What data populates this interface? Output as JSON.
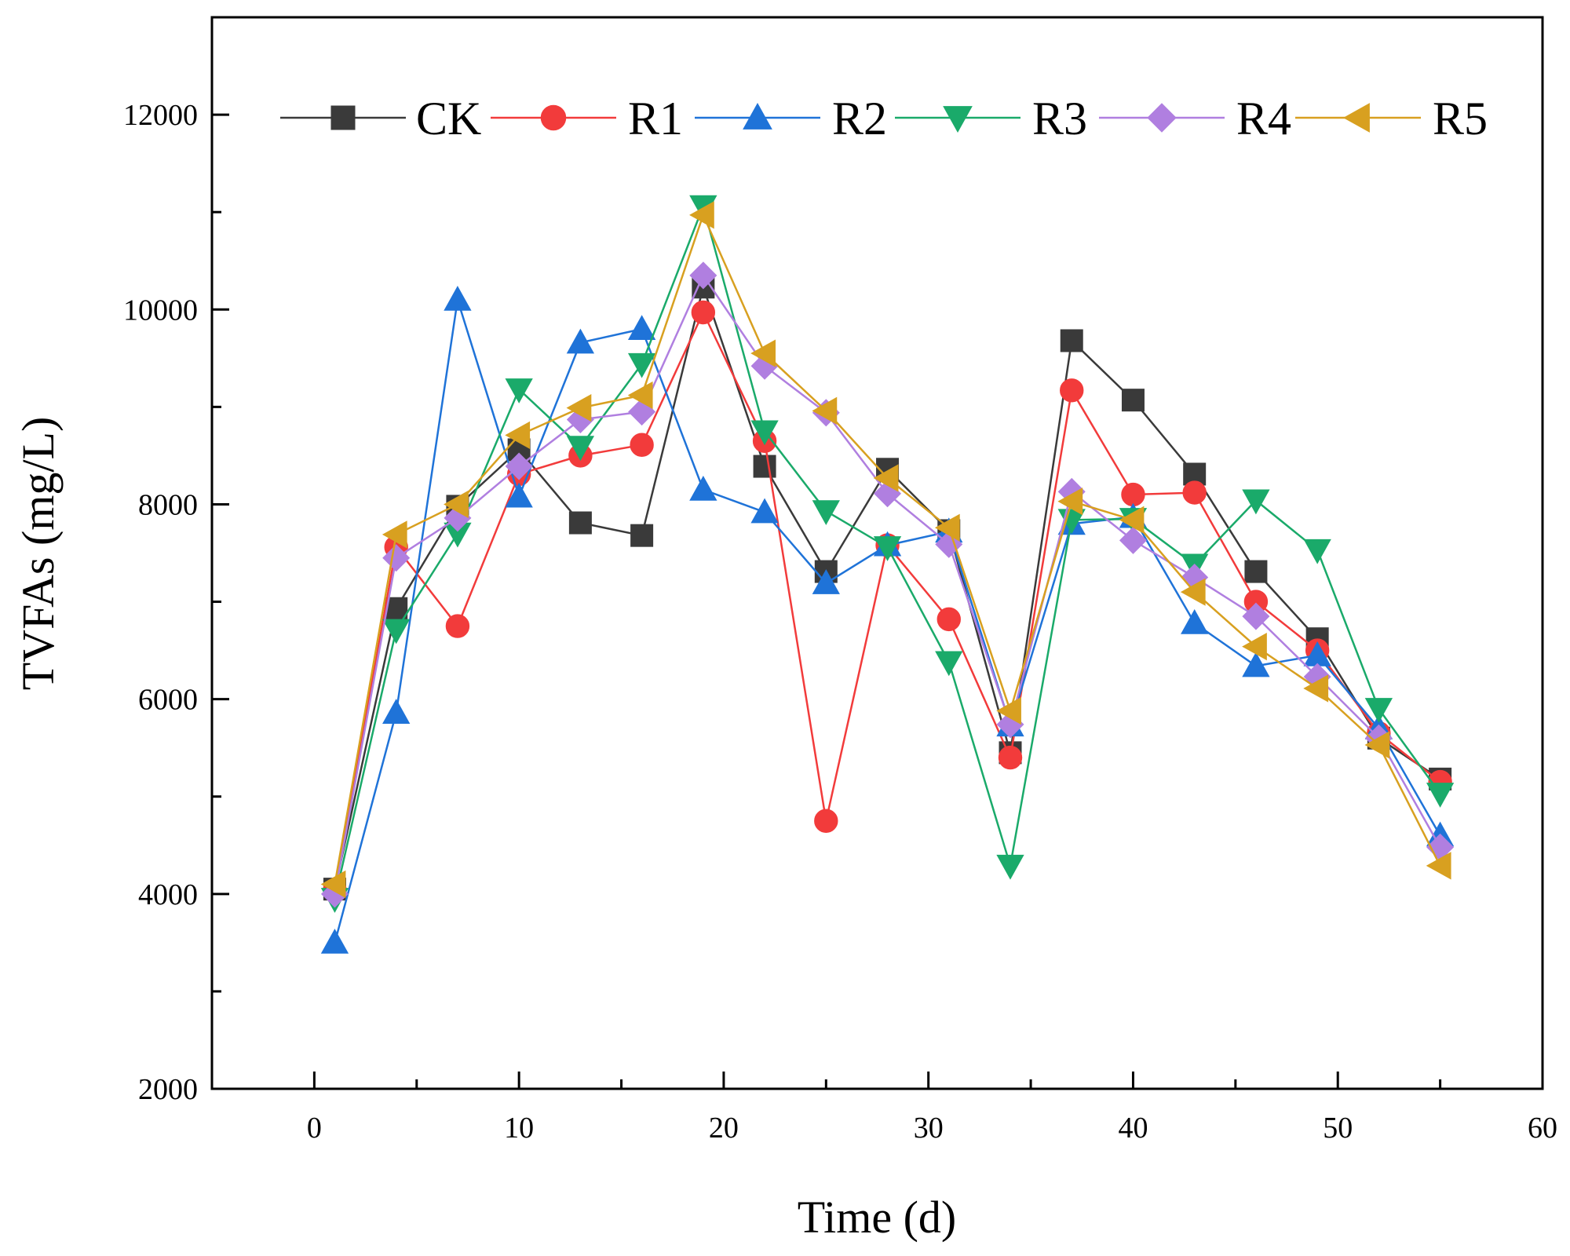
{
  "chart_data": {
    "type": "line",
    "title": "",
    "xlabel": "Time (d)",
    "ylabel": "TVFAs (mg/L)",
    "xlim": [
      -5,
      60
    ],
    "ylim": [
      2000,
      13000
    ],
    "xticks": [
      "0",
      "10",
      "20",
      "30",
      "40",
      "50",
      "60"
    ],
    "yticks": [
      "2000",
      "4000",
      "6000",
      "8000",
      "10000",
      "12000"
    ],
    "legend_position": "top",
    "x": [
      1,
      4,
      7,
      10,
      13,
      16,
      19,
      22,
      25,
      28,
      31,
      34,
      37,
      40,
      43,
      46,
      49,
      52,
      55
    ],
    "series": [
      {
        "name": "CK",
        "color": "#3a3a3a",
        "marker": "square",
        "values": [
          4050,
          6930,
          7980,
          8560,
          7810,
          7680,
          10230,
          8390,
          7310,
          8360,
          7730,
          5450,
          9680,
          9070,
          8310,
          7310,
          6620,
          5600,
          5180
        ]
      },
      {
        "name": "R1",
        "color": "#f23b3b",
        "marker": "circle",
        "values": [
          4040,
          7560,
          6750,
          8310,
          8500,
          8610,
          9970,
          8650,
          4750,
          7580,
          6820,
          5400,
          9170,
          8100,
          8120,
          7000,
          6500,
          5650,
          5150
        ]
      },
      {
        "name": "R2",
        "color": "#1f73d8",
        "marker": "triangle-up",
        "values": [
          3500,
          5860,
          10100,
          8080,
          9660,
          9800,
          8150,
          7920,
          7190,
          7580,
          7720,
          5730,
          7800,
          7870,
          6780,
          6340,
          6450,
          5700,
          4600
        ]
      },
      {
        "name": "R3",
        "color": "#1aaa6a",
        "marker": "triangle-down",
        "values": [
          3950,
          6710,
          7700,
          9180,
          8590,
          9440,
          11060,
          8750,
          7930,
          7560,
          6380,
          4290,
          7840,
          7850,
          7380,
          8040,
          7530,
          5900,
          5030
        ]
      },
      {
        "name": "R4",
        "color": "#b07fe0",
        "marker": "diamond",
        "values": [
          4000,
          7450,
          7860,
          8390,
          8870,
          8950,
          10350,
          9420,
          8940,
          8110,
          7590,
          5740,
          8130,
          7630,
          7250,
          6850,
          6230,
          5600,
          4480
        ]
      },
      {
        "name": "R5",
        "color": "#d8a020",
        "marker": "triangle-left",
        "values": [
          4100,
          7690,
          8000,
          8710,
          8990,
          9120,
          10970,
          9550,
          8960,
          8270,
          7760,
          5880,
          8030,
          7840,
          7100,
          6540,
          6110,
          5530,
          4290
        ]
      }
    ]
  }
}
